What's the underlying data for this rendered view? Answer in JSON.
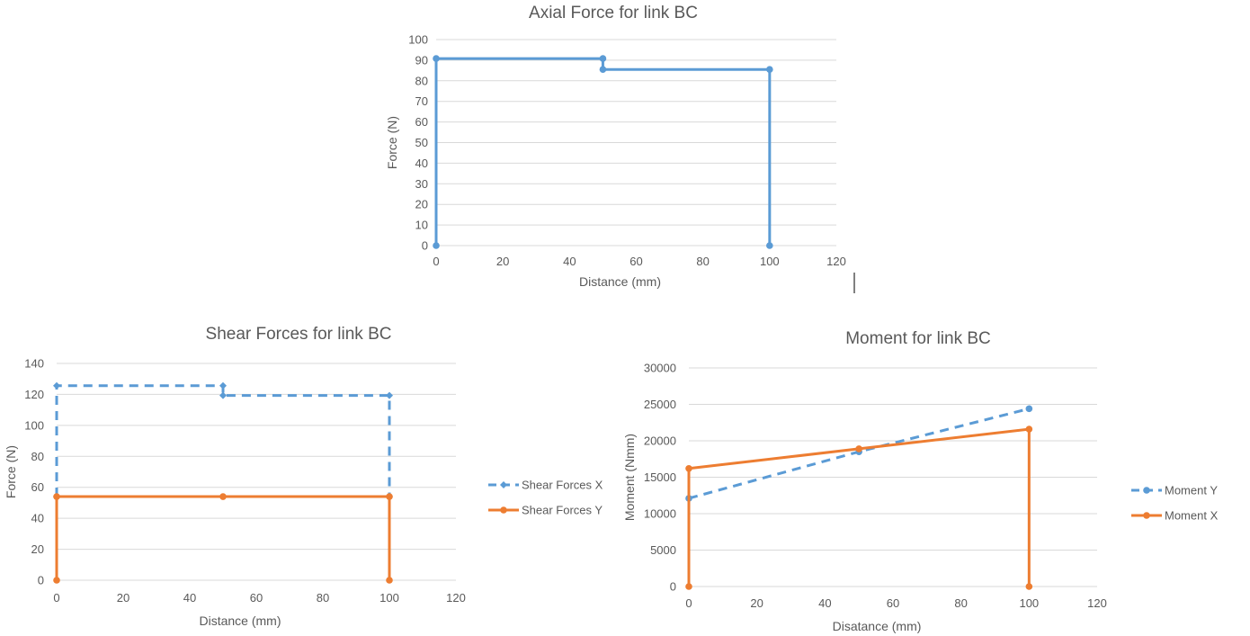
{
  "colors": {
    "blue": "#5b9bd5",
    "orange": "#ed7d31",
    "grid": "#d9d9d9",
    "text": "#595959"
  },
  "chart_data": [
    {
      "type": "line",
      "title": "Axial Force for link BC",
      "xlabel": "Distance (mm)",
      "ylabel": "Force (N)",
      "xlim": [
        0,
        120
      ],
      "ylim": [
        0,
        100
      ],
      "xticks": [
        0,
        20,
        40,
        60,
        80,
        100,
        120
      ],
      "yticks": [
        0,
        10,
        20,
        30,
        40,
        50,
        60,
        70,
        80,
        90,
        100
      ],
      "grid": true,
      "legend": "none",
      "series": [
        {
          "color": "#5b9bd5",
          "dashed": false,
          "marker": "circle",
          "x": [
            0,
            0,
            50,
            50,
            100,
            100
          ],
          "y": [
            0,
            90.8,
            90.8,
            85.5,
            85.5,
            0
          ]
        }
      ]
    },
    {
      "type": "line",
      "title": "Shear Forces for link BC",
      "xlabel": "Distance (mm)",
      "ylabel": "Force (N)",
      "xlim": [
        0,
        120
      ],
      "ylim": [
        0,
        140
      ],
      "xticks": [
        0,
        20,
        40,
        60,
        80,
        100,
        120
      ],
      "yticks": [
        0,
        20,
        40,
        60,
        80,
        100,
        120,
        140
      ],
      "grid": true,
      "legend": "right",
      "series": [
        {
          "name": "Shear Forces X",
          "color": "#5b9bd5",
          "dashed": true,
          "marker": "diamond",
          "x": [
            0,
            0,
            50,
            50,
            100,
            100
          ],
          "y": [
            54,
            125.6,
            125.6,
            119.3,
            119.3,
            54
          ]
        },
        {
          "name": "Shear Forces Y",
          "color": "#ed7d31",
          "dashed": false,
          "marker": "circle",
          "x": [
            0,
            0,
            50,
            100,
            100
          ],
          "y": [
            0,
            54,
            54,
            54,
            0
          ]
        }
      ]
    },
    {
      "type": "line",
      "title": "Moment for link BC",
      "xlabel": "Disatance (mm)",
      "ylabel": "Moment (Nmm)",
      "xlim": [
        0,
        120
      ],
      "ylim": [
        0,
        30000
      ],
      "xticks": [
        0,
        20,
        40,
        60,
        80,
        100,
        120
      ],
      "yticks": [
        0,
        5000,
        10000,
        15000,
        20000,
        25000,
        30000
      ],
      "grid": true,
      "legend": "right",
      "series": [
        {
          "name": "Moment Y",
          "color": "#5b9bd5",
          "dashed": true,
          "marker": "circle",
          "x": [
            0,
            50,
            100
          ],
          "y": [
            12100,
            18500,
            24400
          ]
        },
        {
          "name": "Moment X",
          "color": "#ed7d31",
          "dashed": false,
          "marker": "circle",
          "x": [
            0,
            0,
            50,
            100,
            100
          ],
          "y": [
            0,
            16200,
            18900,
            21600,
            0
          ]
        }
      ]
    }
  ]
}
